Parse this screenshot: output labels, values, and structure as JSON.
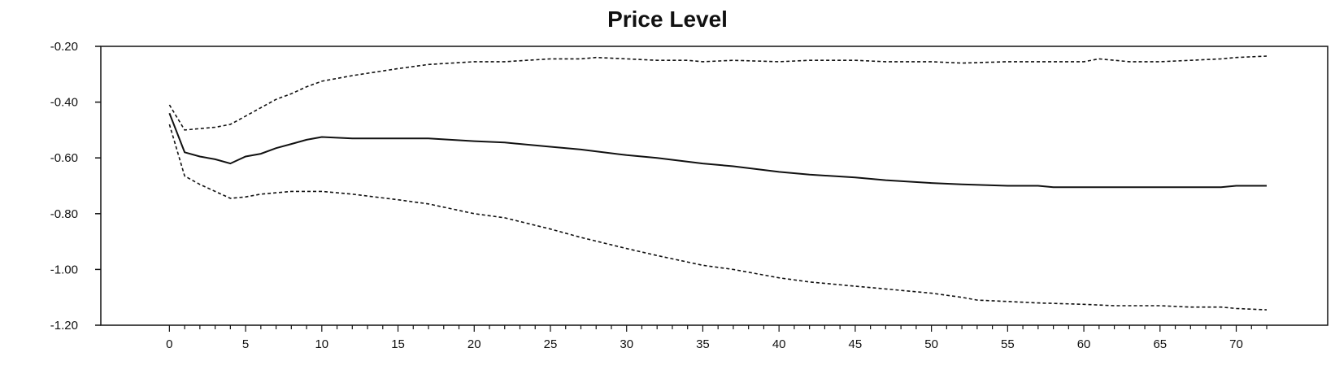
{
  "chart_data": {
    "type": "line",
    "title": "Price Level",
    "xlabel": "",
    "ylabel": "",
    "xlim": [
      -4.5,
      76
    ],
    "ylim": [
      -1.2,
      -0.2
    ],
    "x_ticks": [
      0,
      5,
      10,
      15,
      20,
      25,
      30,
      35,
      40,
      45,
      50,
      55,
      60,
      65,
      70
    ],
    "y_ticks": [
      -0.2,
      -0.4,
      -0.6,
      -0.8,
      -1.0,
      -1.2
    ],
    "y_tick_labels": [
      "-0.20",
      "-0.40",
      "-0.60",
      "-0.80",
      "-1.00",
      "-1.20"
    ],
    "grid": false,
    "series": [
      {
        "style": "solid",
        "x": [
          0,
          1,
          2,
          3,
          4,
          5,
          6,
          7,
          8,
          9,
          10,
          12,
          15,
          17,
          20,
          22,
          25,
          27,
          30,
          32,
          35,
          37,
          40,
          42,
          45,
          47,
          50,
          52,
          55,
          57,
          58,
          60,
          65,
          68,
          69,
          70,
          71,
          72
        ],
        "y": [
          -0.44,
          -0.58,
          -0.595,
          -0.605,
          -0.62,
          -0.595,
          -0.585,
          -0.565,
          -0.55,
          -0.535,
          -0.525,
          -0.53,
          -0.53,
          -0.53,
          -0.54,
          -0.545,
          -0.56,
          -0.57,
          -0.59,
          -0.6,
          -0.62,
          -0.63,
          -0.65,
          -0.66,
          -0.67,
          -0.68,
          -0.69,
          -0.695,
          -0.7,
          -0.7,
          -0.705,
          -0.705,
          -0.705,
          -0.705,
          -0.705,
          -0.7,
          -0.7,
          -0.7
        ]
      },
      {
        "style": "dashed",
        "x": [
          0,
          1,
          2,
          3,
          4,
          5,
          6,
          7,
          8,
          9,
          10,
          12,
          15,
          17,
          20,
          22,
          25,
          27,
          28,
          30,
          32,
          34,
          35,
          37,
          40,
          42,
          45,
          47,
          50,
          52,
          55,
          57,
          60,
          61,
          63,
          65,
          67,
          69,
          70,
          72
        ],
        "y": [
          -0.41,
          -0.5,
          -0.495,
          -0.49,
          -0.48,
          -0.45,
          -0.42,
          -0.39,
          -0.37,
          -0.345,
          -0.325,
          -0.305,
          -0.28,
          -0.265,
          -0.255,
          -0.255,
          -0.245,
          -0.245,
          -0.24,
          -0.245,
          -0.25,
          -0.25,
          -0.255,
          -0.25,
          -0.255,
          -0.25,
          -0.25,
          -0.255,
          -0.255,
          -0.26,
          -0.255,
          -0.255,
          -0.255,
          -0.245,
          -0.255,
          -0.255,
          -0.25,
          -0.245,
          -0.24,
          -0.235
        ]
      },
      {
        "style": "dashed",
        "x": [
          0,
          1,
          2,
          3,
          4,
          5,
          6,
          7,
          8,
          9,
          10,
          12,
          15,
          17,
          20,
          22,
          25,
          27,
          30,
          32,
          35,
          37,
          40,
          42,
          45,
          47,
          50,
          52,
          53,
          55,
          57,
          60,
          62,
          65,
          67,
          69,
          70,
          72
        ],
        "y": [
          -0.48,
          -0.665,
          -0.695,
          -0.72,
          -0.745,
          -0.74,
          -0.73,
          -0.725,
          -0.72,
          -0.72,
          -0.72,
          -0.73,
          -0.75,
          -0.765,
          -0.8,
          -0.815,
          -0.855,
          -0.885,
          -0.925,
          -0.95,
          -0.985,
          -1.0,
          -1.03,
          -1.045,
          -1.06,
          -1.07,
          -1.085,
          -1.1,
          -1.11,
          -1.115,
          -1.12,
          -1.125,
          -1.13,
          -1.13,
          -1.135,
          -1.135,
          -1.14,
          -1.145
        ]
      }
    ]
  }
}
